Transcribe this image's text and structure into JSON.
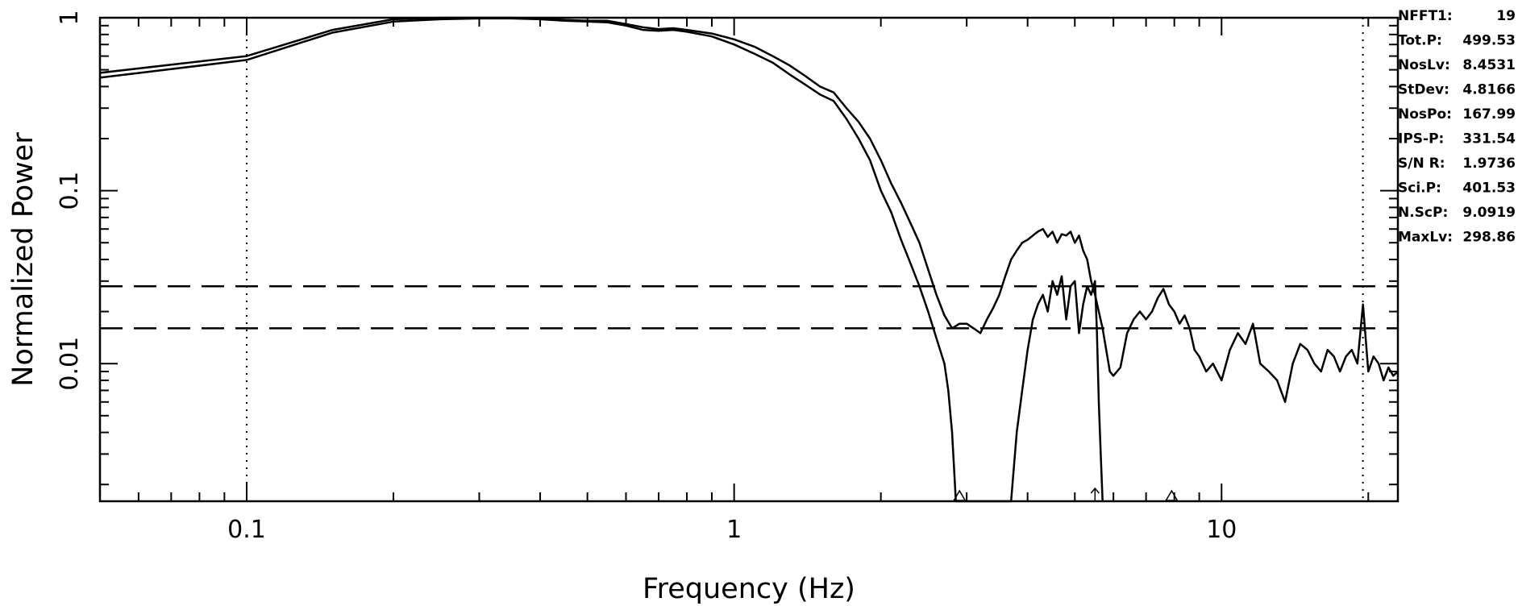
{
  "chart_data": {
    "type": "line",
    "xlabel": "Frequency (Hz)",
    "ylabel": "Normalized Power",
    "x_scale": "log",
    "y_scale": "log",
    "xlim": [
      0.05,
      23
    ],
    "ylim": [
      0.0016,
      1
    ],
    "x_ticks": [
      {
        "value": 0.1,
        "label": "0.1"
      },
      {
        "value": 1,
        "label": "1"
      },
      {
        "value": 10,
        "label": "10"
      }
    ],
    "y_ticks": [
      {
        "value": 1,
        "label": "1"
      },
      {
        "value": 0.1,
        "label": "0.1"
      },
      {
        "value": 0.01,
        "label": "0.01"
      }
    ],
    "vertical_dotted_lines": [
      0.1,
      19.5
    ],
    "horizontal_dashed_lines": [
      0.028,
      0.016
    ],
    "markers": [
      {
        "x": 2.9,
        "symbol": "triangle"
      },
      {
        "x": 5.5,
        "symbol": "arrow"
      },
      {
        "x": 7.9,
        "symbol": "triangle"
      }
    ],
    "series": [
      {
        "style": "solid",
        "x": [
          0.05,
          0.1,
          0.15,
          0.2,
          0.25,
          0.3,
          0.35,
          0.4,
          0.45,
          0.5,
          0.55,
          0.6,
          0.65,
          0.7,
          0.75,
          0.8,
          0.9,
          1.0,
          1.1,
          1.2,
          1.3,
          1.4,
          1.5,
          1.6,
          1.7,
          1.8,
          1.9,
          2.0,
          2.1,
          2.2,
          2.3,
          2.4,
          2.5,
          2.6,
          2.7,
          2.8,
          2.9,
          3.0,
          3.1,
          3.2,
          3.3,
          3.4,
          3.5,
          3.6,
          3.7,
          3.8,
          3.9,
          4.0,
          4.1,
          4.2,
          4.3,
          4.4,
          4.5,
          4.6,
          4.7,
          4.8,
          4.9,
          5.0,
          5.1,
          5.2,
          5.3,
          5.4,
          5.5,
          5.6,
          5.7,
          5.8,
          5.9,
          6.0,
          6.2,
          6.4,
          6.6,
          6.8,
          7.0,
          7.2,
          7.4,
          7.6,
          7.8,
          8.0,
          8.2,
          8.4,
          8.6,
          8.8,
          9.0,
          9.3,
          9.6,
          10.0,
          10.4,
          10.8,
          11.2,
          11.6,
          12.0,
          12.5,
          13.0,
          13.5,
          14.0,
          14.5,
          15.0,
          15.5,
          16.0,
          16.5,
          17.0,
          17.5,
          18.0,
          18.5,
          19.0,
          19.5,
          20.0,
          20.5,
          21.0,
          21.5,
          22.0,
          22.5,
          23.0
        ],
        "y": [
          0.48,
          0.6,
          0.85,
          0.98,
          1.0,
          1.0,
          1.0,
          0.99,
          0.97,
          0.96,
          0.96,
          0.92,
          0.88,
          0.86,
          0.87,
          0.85,
          0.81,
          0.75,
          0.68,
          0.6,
          0.53,
          0.46,
          0.4,
          0.37,
          0.3,
          0.25,
          0.2,
          0.15,
          0.11,
          0.085,
          0.065,
          0.05,
          0.035,
          0.025,
          0.019,
          0.016,
          0.017,
          0.017,
          0.016,
          0.015,
          0.018,
          0.021,
          0.025,
          0.032,
          0.04,
          0.045,
          0.05,
          0.052,
          0.055,
          0.058,
          0.06,
          0.054,
          0.058,
          0.05,
          0.056,
          0.055,
          0.058,
          0.05,
          0.055,
          0.045,
          0.04,
          0.03,
          0.025,
          0.02,
          0.016,
          0.012,
          0.009,
          0.0085,
          0.0095,
          0.015,
          0.018,
          0.02,
          0.018,
          0.02,
          0.024,
          0.027,
          0.022,
          0.02,
          0.017,
          0.019,
          0.016,
          0.012,
          0.011,
          0.009,
          0.01,
          0.008,
          0.012,
          0.015,
          0.013,
          0.017,
          0.01,
          0.009,
          0.008,
          0.006,
          0.01,
          0.013,
          0.012,
          0.01,
          0.009,
          0.012,
          0.011,
          0.009,
          0.011,
          0.012,
          0.01,
          0.022,
          0.009,
          0.011,
          0.01,
          0.008,
          0.0095,
          0.0085,
          0.009
        ]
      },
      {
        "style": "solid",
        "x": [
          0.05,
          0.1,
          0.15,
          0.2,
          0.25,
          0.3,
          0.35,
          0.4,
          0.45,
          0.5,
          0.55,
          0.6,
          0.65,
          0.7,
          0.75,
          0.8,
          0.9,
          1.0,
          1.1,
          1.2,
          1.3,
          1.4,
          1.5,
          1.6,
          1.7,
          1.8,
          1.9,
          2.0,
          2.1,
          2.2,
          2.3,
          2.4,
          2.5,
          2.6,
          2.7,
          2.75,
          2.8,
          2.85,
          3.7,
          3.8,
          3.9,
          4.0,
          4.1,
          4.2,
          4.3,
          4.4,
          4.5,
          4.6,
          4.7,
          4.8,
          4.9,
          5.0,
          5.1,
          5.2,
          5.3,
          5.4,
          5.5,
          5.55,
          5.6,
          5.65,
          5.7
        ],
        "y": [
          0.45,
          0.57,
          0.82,
          0.95,
          0.98,
          0.99,
          0.99,
          0.98,
          0.96,
          0.95,
          0.94,
          0.9,
          0.85,
          0.84,
          0.85,
          0.83,
          0.78,
          0.7,
          0.62,
          0.55,
          0.47,
          0.41,
          0.36,
          0.33,
          0.26,
          0.2,
          0.15,
          0.1,
          0.075,
          0.052,
          0.038,
          0.028,
          0.02,
          0.014,
          0.01,
          0.007,
          0.004,
          0.0016,
          0.0016,
          0.004,
          0.007,
          0.012,
          0.018,
          0.022,
          0.025,
          0.02,
          0.03,
          0.025,
          0.032,
          0.018,
          0.028,
          0.03,
          0.015,
          0.022,
          0.028,
          0.025,
          0.03,
          0.015,
          0.006,
          0.003,
          0.0016
        ]
      }
    ]
  },
  "stats": [
    {
      "label": "NFFT1:",
      "value": "19"
    },
    {
      "label": "Tot.P:",
      "value": "499.53"
    },
    {
      "label": "NosLv:",
      "value": "8.4531"
    },
    {
      "label": "StDev:",
      "value": "4.8166"
    },
    {
      "label": "NosPo:",
      "value": "167.99"
    },
    {
      "label": "IPS-P:",
      "value": "331.54"
    },
    {
      "label": "S/N R:",
      "value": "1.9736"
    },
    {
      "label": "Sci.P:",
      "value": "401.53"
    },
    {
      "label": "N.ScP:",
      "value": "9.0919"
    },
    {
      "label": "MaxLv:",
      "value": "298.86"
    }
  ]
}
